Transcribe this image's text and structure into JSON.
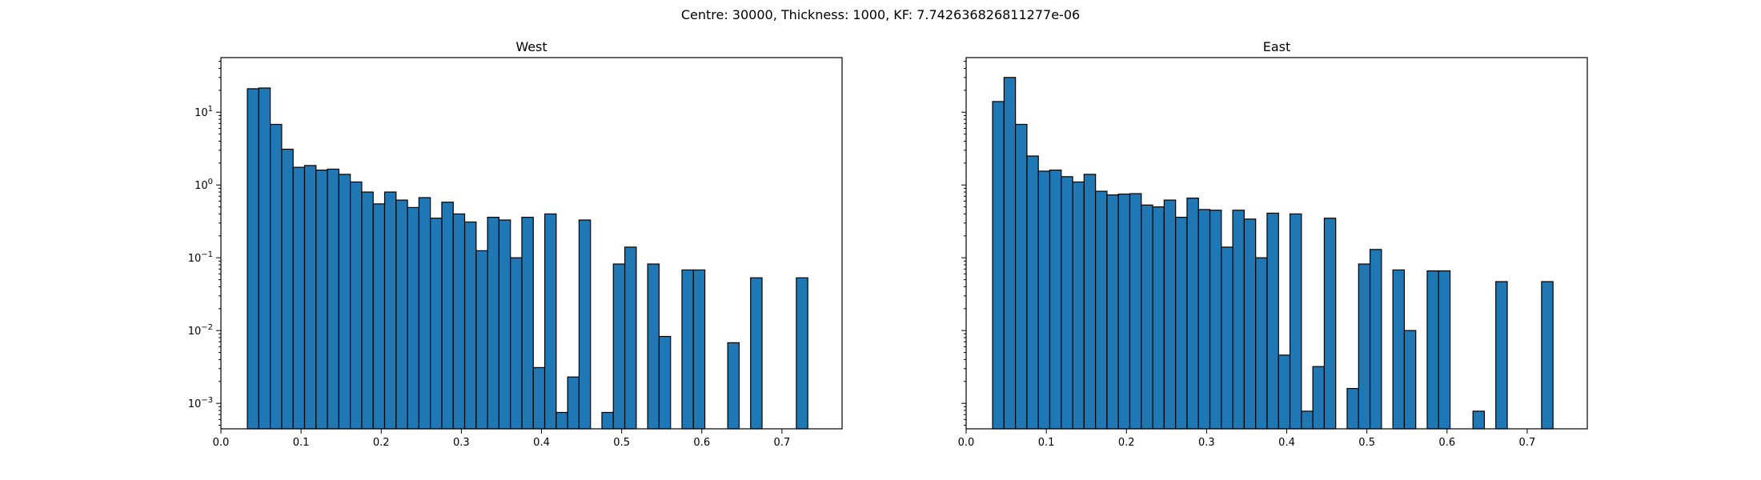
{
  "figure": {
    "suptitle": "Centre: 30000, Thickness: 1000, KF: 7.742636826811277e-06"
  },
  "chart_data": [
    {
      "type": "bar",
      "title": "West",
      "yscale": "log",
      "xlim": [
        0.0,
        0.775
      ],
      "ylim_exp": [
        -3.35,
        1.75
      ],
      "xticks": [
        "0.0",
        "0.1",
        "0.2",
        "0.3",
        "0.4",
        "0.5",
        "0.6",
        "0.7"
      ],
      "yticks": [
        {
          "base": "10",
          "exp": "1"
        },
        {
          "base": "10",
          "exp": "0"
        },
        {
          "base": "10",
          "exp": "−1"
        },
        {
          "base": "10",
          "exp": "−2"
        },
        {
          "base": "10",
          "exp": "−3"
        }
      ],
      "bin_start": 0.033,
      "bin_width": 0.01427,
      "values": [
        21,
        21.5,
        6.8,
        3.1,
        1.75,
        1.85,
        1.6,
        1.65,
        1.4,
        1.1,
        0.8,
        0.55,
        0.8,
        0.62,
        0.49,
        0.67,
        0.35,
        0.58,
        0.4,
        0.31,
        0.125,
        0.36,
        0.33,
        0.1,
        0.36,
        0.0031,
        0.4,
        0.00075,
        0.0023,
        0.33,
        0,
        0.00075,
        0.082,
        0.14,
        0,
        0.082,
        0.0083,
        0,
        0.068,
        0.068,
        0,
        0,
        0.0068,
        0,
        0.053,
        0,
        0,
        0,
        0.053
      ]
    },
    {
      "type": "bar",
      "title": "East",
      "yscale": "log",
      "xlim": [
        0.0,
        0.775
      ],
      "ylim_exp": [
        -3.35,
        1.75
      ],
      "xticks": [
        "0.0",
        "0.1",
        "0.2",
        "0.3",
        "0.4",
        "0.5",
        "0.6",
        "0.7"
      ],
      "yticks": [],
      "bin_start": 0.033,
      "bin_width": 0.01427,
      "values": [
        14,
        30,
        6.8,
        2.5,
        1.55,
        1.6,
        1.3,
        1.1,
        1.4,
        0.82,
        0.73,
        0.75,
        0.76,
        0.53,
        0.5,
        0.62,
        0.36,
        0.66,
        0.46,
        0.45,
        0.14,
        0.45,
        0.34,
        0.1,
        0.41,
        0.0046,
        0.4,
        0.00078,
        0.0032,
        0.35,
        0,
        0.0016,
        0.082,
        0.13,
        0,
        0.068,
        0.01,
        0,
        0.066,
        0.066,
        0,
        0,
        0.00078,
        0,
        0.047,
        0,
        0,
        0,
        0.047
      ]
    }
  ]
}
